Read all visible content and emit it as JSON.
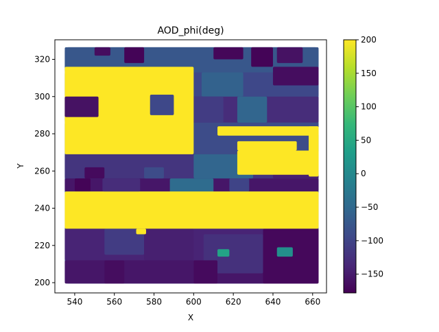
{
  "chart_data": {
    "type": "heatmap",
    "title": "AOD_phi(deg)",
    "xlabel": "X",
    "ylabel": "Y",
    "xlim": [
      530,
      667
    ],
    "ylim": [
      194.5,
      330.5
    ],
    "xticks": [
      540,
      560,
      580,
      600,
      620,
      640,
      660
    ],
    "yticks": [
      200,
      220,
      240,
      260,
      280,
      300,
      320
    ],
    "x_range": [
      535,
      663
    ],
    "y_range": [
      199.5,
      326.5
    ],
    "grid": false,
    "legend": "none",
    "colorbar": {
      "min": -178,
      "max": 200,
      "ticks": [
        200,
        150,
        100,
        50,
        0,
        -50,
        -100,
        -150
      ],
      "colormap": "viridis",
      "colors": [
        "#440154",
        "#482878",
        "#3e4989",
        "#31688e",
        "#26828e",
        "#1f9e89",
        "#35b779",
        "#6ece58",
        "#b5de2b",
        "#fde725"
      ]
    },
    "background_value": -75,
    "regions": [
      {
        "x": [
          535,
          663
        ],
        "y": [
          326.5,
          313
        ],
        "value": -75
      },
      {
        "x": [
          535,
          663
        ],
        "y": [
          313,
          300
        ],
        "value": -95
      },
      {
        "x": [
          535,
          663
        ],
        "y": [
          300,
          286
        ],
        "value": -130
      },
      {
        "x": [
          535,
          663
        ],
        "y": [
          286,
          269
        ],
        "value": -90
      },
      {
        "x": [
          535,
          663
        ],
        "y": [
          269,
          256
        ],
        "value": -120
      },
      {
        "x": [
          535,
          663
        ],
        "y": [
          256,
          249
        ],
        "value": -155
      },
      {
        "x": [
          535,
          663
        ],
        "y": [
          229,
          212
        ],
        "value": -140
      },
      {
        "x": [
          535,
          663
        ],
        "y": [
          212,
          199.5
        ],
        "value": -155
      },
      {
        "x": [
          635,
          663
        ],
        "y": [
          229,
          199.5
        ],
        "value": -170
      },
      {
        "x": [
          605,
          635
        ],
        "y": [
          226,
          205
        ],
        "value": -125
      },
      {
        "x": [
          555,
          575
        ],
        "y": [
          229,
          215
        ],
        "value": -110
      },
      {
        "x": [
          575,
          600
        ],
        "y": [
          229,
          212
        ],
        "value": -145
      },
      {
        "x": [
          555,
          565
        ],
        "y": [
          212,
          199.5
        ],
        "value": -165
      },
      {
        "x": [
          600,
          612
        ],
        "y": [
          212,
          199.5
        ],
        "value": -168
      },
      {
        "x": [
          588,
          610
        ],
        "y": [
          256,
          240
        ],
        "value": -45
      },
      {
        "x": [
          604,
          625
        ],
        "y": [
          313,
          300
        ],
        "value": -60
      },
      {
        "x": [
          600,
          615
        ],
        "y": [
          300,
          286
        ],
        "value": -110
      },
      {
        "x": [
          622,
          637
        ],
        "y": [
          300,
          286
        ],
        "value": -55
      },
      {
        "x": [
          600,
          630
        ],
        "y": [
          269,
          256
        ],
        "value": -55
      },
      {
        "x": [
          640,
          663
        ],
        "y": [
          269,
          256
        ],
        "value": -145
      },
      {
        "x": [
          550,
          558
        ],
        "y": [
          326.5,
          322
        ],
        "value": -165
      },
      {
        "x": [
          565,
          575
        ],
        "y": [
          326.5,
          318
        ],
        "value": -175
      },
      {
        "x": [
          610,
          625
        ],
        "y": [
          326.5,
          320
        ],
        "value": -172
      },
      {
        "x": [
          629,
          640
        ],
        "y": [
          326.5,
          316
        ],
        "value": -175
      },
      {
        "x": [
          642,
          655
        ],
        "y": [
          326.5,
          318
        ],
        "value": -160
      },
      {
        "x": [
          640,
          663
        ],
        "y": [
          316,
          306
        ],
        "value": -165
      },
      {
        "x": [
          545,
          555
        ],
        "y": [
          262,
          256
        ],
        "value": -168
      },
      {
        "x": [
          575,
          585
        ],
        "y": [
          262,
          256
        ],
        "value": -90
      },
      {
        "x": [
          540,
          548
        ],
        "y": [
          256,
          249
        ],
        "value": -175
      },
      {
        "x": [
          618,
          628
        ],
        "y": [
          256,
          249
        ],
        "value": -100
      },
      {
        "x": [
          642,
          650
        ],
        "y": [
          219,
          214
        ],
        "value": 10
      },
      {
        "x": [
          612,
          618
        ],
        "y": [
          218,
          214
        ],
        "value": 40
      },
      {
        "x": [
          535,
          663
        ],
        "y": [
          249,
          229
        ],
        "value": 200
      },
      {
        "x": [
          535,
          600
        ],
        "y": [
          316,
          269
        ],
        "value": 200
      },
      {
        "x": [
          535,
          552
        ],
        "y": [
          300,
          289
        ],
        "value": -160
      },
      {
        "x": [
          578,
          590
        ],
        "y": [
          301,
          290
        ],
        "value": -95
      },
      {
        "x": [
          554,
          573
        ],
        "y": [
          256,
          249
        ],
        "value": -130
      },
      {
        "x": [
          612,
          663
        ],
        "y": [
          284,
          279
        ],
        "value": 200
      },
      {
        "x": [
          658,
          663
        ],
        "y": [
          284,
          257
        ],
        "value": 200
      },
      {
        "x": [
          622,
          663
        ],
        "y": [
          271,
          258
        ],
        "value": 200
      },
      {
        "x": [
          622,
          652
        ],
        "y": [
          276,
          271
        ],
        "value": 200
      },
      {
        "x": [
          571,
          576
        ],
        "y": [
          229,
          226
        ],
        "value": 200
      }
    ]
  }
}
